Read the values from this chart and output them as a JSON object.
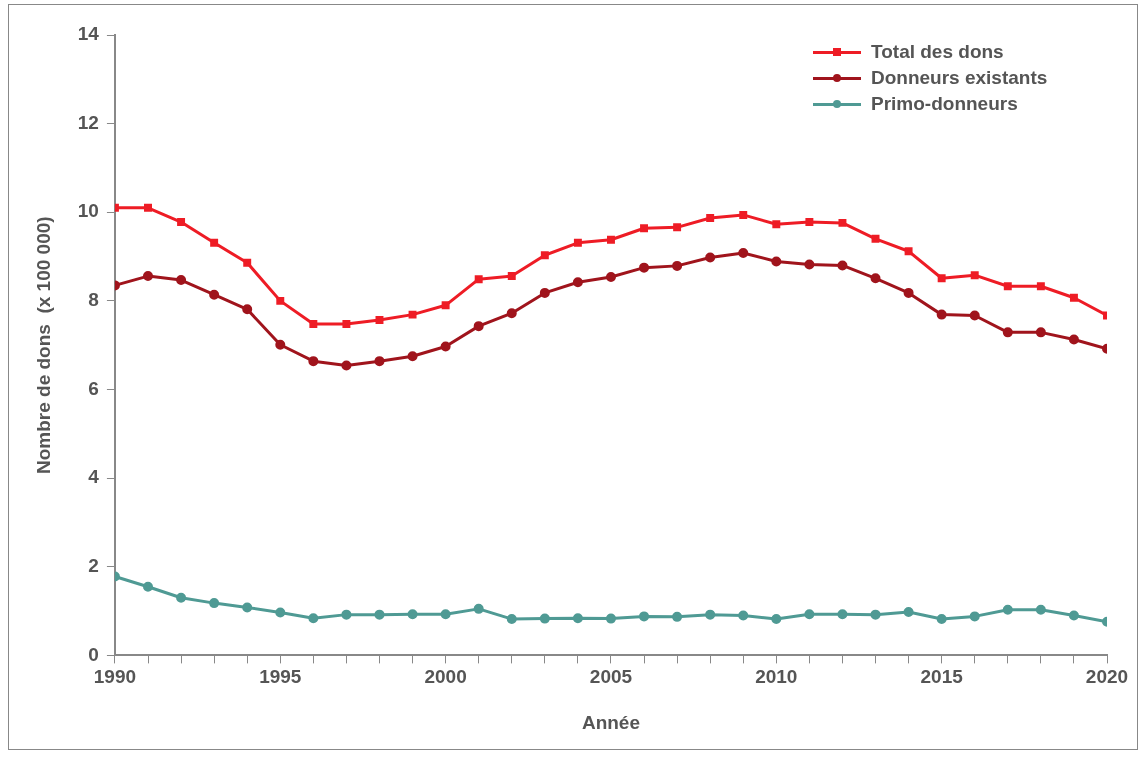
{
  "chart_data": {
    "type": "line",
    "xlabel": "Année",
    "ylabel": "Nombre de dons  (x 100 000)",
    "x": [
      1990,
      1991,
      1992,
      1993,
      1994,
      1995,
      1996,
      1997,
      1998,
      1999,
      2000,
      2001,
      2002,
      2003,
      2004,
      2005,
      2006,
      2007,
      2008,
      2009,
      2010,
      2011,
      2012,
      2013,
      2014,
      2015,
      2016,
      2017,
      2018,
      2019,
      2020
    ],
    "xlim": [
      1990,
      2020
    ],
    "xticks": [
      1990,
      {
        "value": 1991,
        "label": null
      },
      {
        "value": 1992,
        "label": null
      },
      {
        "value": 1993,
        "label": null
      },
      {
        "value": 1994,
        "label": null
      },
      1995,
      {
        "value": 1996,
        "label": null
      },
      {
        "value": 1997,
        "label": null
      },
      {
        "value": 1998,
        "label": null
      },
      {
        "value": 1999,
        "label": null
      },
      2000,
      {
        "value": 2001,
        "label": null
      },
      {
        "value": 2002,
        "label": null
      },
      {
        "value": 2003,
        "label": null
      },
      {
        "value": 2004,
        "label": null
      },
      2005,
      {
        "value": 2006,
        "label": null
      },
      {
        "value": 2007,
        "label": null
      },
      {
        "value": 2008,
        "label": null
      },
      {
        "value": 2009,
        "label": null
      },
      2010,
      {
        "value": 2011,
        "label": null
      },
      {
        "value": 2012,
        "label": null
      },
      {
        "value": 2013,
        "label": null
      },
      {
        "value": 2014,
        "label": null
      },
      2015,
      {
        "value": 2016,
        "label": null
      },
      {
        "value": 2017,
        "label": null
      },
      {
        "value": 2018,
        "label": null
      },
      {
        "value": 2019,
        "label": null
      },
      2020
    ],
    "ylim": [
      0,
      14
    ],
    "yticks": [
      0,
      2,
      4,
      6,
      8,
      10,
      12,
      14
    ],
    "grid": false,
    "legend": "top right",
    "line_style": "solid",
    "series": [
      {
        "name": "Total des dons",
        "color": "#ee1c25",
        "marker": "square",
        "values": [
          10.1,
          10.1,
          9.78,
          9.31,
          8.86,
          8.0,
          7.48,
          7.48,
          7.57,
          7.69,
          7.9,
          8.49,
          8.56,
          9.03,
          9.31,
          9.38,
          9.64,
          9.66,
          9.87,
          9.94,
          9.73,
          9.78,
          9.76,
          9.4,
          9.12,
          8.51,
          8.58,
          8.33,
          8.33,
          8.07,
          7.67
        ]
      },
      {
        "name": "Donneurs existants",
        "color": "#a0141c",
        "marker": "circle",
        "values": [
          8.35,
          8.56,
          8.47,
          8.14,
          7.81,
          7.01,
          6.64,
          6.54,
          6.64,
          6.75,
          6.97,
          7.43,
          7.72,
          8.18,
          8.42,
          8.54,
          8.75,
          8.79,
          8.98,
          9.08,
          8.89,
          8.82,
          8.8,
          8.51,
          8.18,
          7.69,
          7.67,
          7.29,
          7.29,
          7.13,
          6.92
        ]
      },
      {
        "name": "Primo-donneurs",
        "color": "#4f9a94",
        "marker": "circle",
        "values": [
          1.78,
          1.55,
          1.3,
          1.18,
          1.08,
          0.97,
          0.84,
          0.92,
          0.92,
          0.93,
          0.93,
          1.05,
          0.82,
          0.83,
          0.84,
          0.83,
          0.88,
          0.87,
          0.92,
          0.9,
          0.82,
          0.93,
          0.93,
          0.92,
          0.98,
          0.82,
          0.88,
          1.03,
          1.03,
          0.9,
          0.76
        ]
      }
    ]
  }
}
